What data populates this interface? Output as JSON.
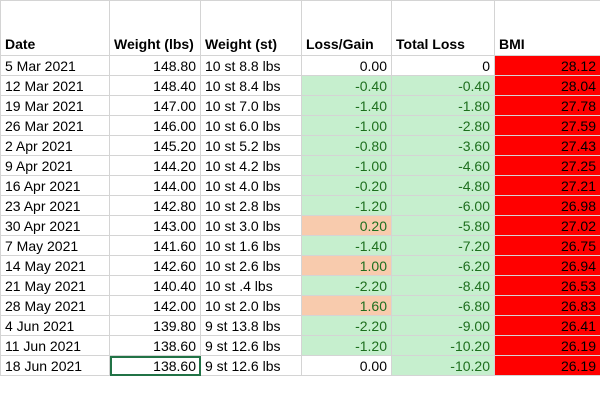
{
  "headers": {
    "date": "Date",
    "weight_lbs": "Weight (lbs)",
    "weight_st": "Weight (st)",
    "loss_gain": "Loss/Gain",
    "total_loss": "Total Loss",
    "bmi": "BMI"
  },
  "colors": {
    "gain_fill": "#f8cbad",
    "loss_fill": "#c6efce",
    "loss_text": "#1e6f1e",
    "bmi_fill": "#ff0000",
    "selection_border": "#217346"
  },
  "rows": [
    {
      "date": "5 Mar 2021",
      "lbs": "148.80",
      "st": "10 st 8.8 lbs",
      "change": "0.00",
      "total": "0",
      "bmi": "28.12",
      "change_status": "none"
    },
    {
      "date": "12 Mar 2021",
      "lbs": "148.40",
      "st": "10 st 8.4 lbs",
      "change": "-0.40",
      "total": "-0.40",
      "bmi": "28.04",
      "change_status": "loss"
    },
    {
      "date": "19 Mar 2021",
      "lbs": "147.00",
      "st": "10 st 7.0 lbs",
      "change": "-1.40",
      "total": "-1.80",
      "bmi": "27.78",
      "change_status": "loss"
    },
    {
      "date": "26 Mar 2021",
      "lbs": "146.00",
      "st": "10 st 6.0 lbs",
      "change": "-1.00",
      "total": "-2.80",
      "bmi": "27.59",
      "change_status": "loss"
    },
    {
      "date": "2 Apr 2021",
      "lbs": "145.20",
      "st": "10 st 5.2 lbs",
      "change": "-0.80",
      "total": "-3.60",
      "bmi": "27.43",
      "change_status": "loss"
    },
    {
      "date": "9 Apr 2021",
      "lbs": "144.20",
      "st": "10 st 4.2 lbs",
      "change": "-1.00",
      "total": "-4.60",
      "bmi": "27.25",
      "change_status": "loss"
    },
    {
      "date": "16 Apr 2021",
      "lbs": "144.00",
      "st": "10 st 4.0 lbs",
      "change": "-0.20",
      "total": "-4.80",
      "bmi": "27.21",
      "change_status": "loss"
    },
    {
      "date": "23 Apr 2021",
      "lbs": "142.80",
      "st": "10 st 2.8 lbs",
      "change": "-1.20",
      "total": "-6.00",
      "bmi": "26.98",
      "change_status": "loss"
    },
    {
      "date": "30 Apr 2021",
      "lbs": "143.00",
      "st": "10 st 3.0 lbs",
      "change": "0.20",
      "total": "-5.80",
      "bmi": "27.02",
      "change_status": "gain"
    },
    {
      "date": "7 May 2021",
      "lbs": "141.60",
      "st": "10 st 1.6 lbs",
      "change": "-1.40",
      "total": "-7.20",
      "bmi": "26.75",
      "change_status": "loss"
    },
    {
      "date": "14 May 2021",
      "lbs": "142.60",
      "st": "10 st 2.6 lbs",
      "change": "1.00",
      "total": "-6.20",
      "bmi": "26.94",
      "change_status": "gain"
    },
    {
      "date": "21 May 2021",
      "lbs": "140.40",
      "st": "10 st .4 lbs",
      "change": "-2.20",
      "total": "-8.40",
      "bmi": "26.53",
      "change_status": "loss"
    },
    {
      "date": "28 May 2021",
      "lbs": "142.00",
      "st": "10 st 2.0 lbs",
      "change": "1.60",
      "total": "-6.80",
      "bmi": "26.83",
      "change_status": "gain"
    },
    {
      "date": "4 Jun 2021",
      "lbs": "139.80",
      "st": "9 st 13.8 lbs",
      "change": "-2.20",
      "total": "-9.00",
      "bmi": "26.41",
      "change_status": "loss"
    },
    {
      "date": "11 Jun 2021",
      "lbs": "138.60",
      "st": "9 st 12.6 lbs",
      "change": "-1.20",
      "total": "-10.20",
      "bmi": "26.19",
      "change_status": "loss"
    },
    {
      "date": "18 Jun 2021",
      "lbs": "138.60",
      "st": "9 st 12.6 lbs",
      "change": "0.00",
      "total": "-10.20",
      "bmi": "26.19",
      "change_status": "none",
      "selected_column": "lbs"
    }
  ]
}
